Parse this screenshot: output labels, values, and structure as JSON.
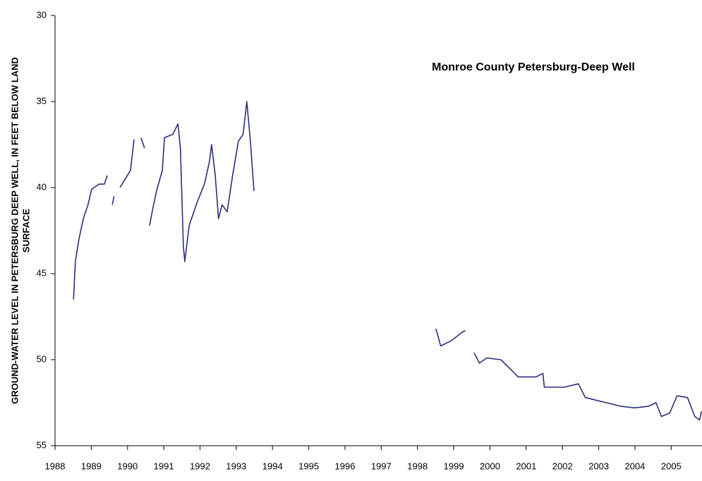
{
  "chart_data": {
    "type": "line",
    "title": "Monroe County Petersburg-Deep Well",
    "ylabel": [
      "GROUND-WATER LEVEL IN PETERSBURG DEEP WELL, IN FEET BELOW LAND",
      "SURFACE"
    ],
    "xlim": [
      1988,
      2005.85
    ],
    "xticks": [
      1988,
      1989,
      1990,
      1991,
      1992,
      1993,
      1994,
      1995,
      1996,
      1997,
      1998,
      1999,
      2000,
      2001,
      2002,
      2003,
      2004,
      2005
    ],
    "ylim": [
      55,
      30
    ],
    "yticks": [
      30,
      35,
      40,
      45,
      50,
      55
    ],
    "grid": false,
    "x": [
      1988.51,
      1988.56,
      1988.66,
      1988.78,
      1988.91,
      1989.01,
      1989.21,
      1989.36,
      1989.44,
      1989.55,
      1989.58,
      1989.63,
      1989.7,
      1989.79,
      1990.08,
      1990.18,
      1990.25,
      1990.37,
      1990.47,
      1990.55,
      1990.61,
      1990.68,
      1990.8,
      1990.96,
      1991.02,
      1991.25,
      1991.39,
      1991.46,
      1991.54,
      1991.58,
      1991.7,
      1991.93,
      1992.12,
      1992.26,
      1992.32,
      1992.42,
      1992.51,
      1992.61,
      1992.75,
      1992.9,
      1993.06,
      1993.19,
      1993.29,
      1993.39,
      1993.49,
      1996.0,
      1998.51,
      1998.64,
      1998.93,
      1999.23,
      1999.32,
      1999.36,
      1999.48,
      1999.52,
      1999.56,
      1999.71,
      1999.91,
      2000.3,
      2000.59,
      2000.78,
      2001.27,
      2001.46,
      2001.5,
      2002.05,
      2002.44,
      2002.63,
      2003.21,
      2003.6,
      2003.99,
      2004.38,
      2004.58,
      2004.73,
      2004.96,
      2005.16,
      2005.45,
      2005.65,
      2005.78,
      2005.84
    ],
    "series": [
      {
        "color": "#2b2f7f",
        "values": [
          46.5,
          44.3,
          43.0,
          41.8,
          41.0,
          40.1,
          39.8,
          39.8,
          39.3,
          null,
          41.0,
          40.5,
          null,
          40.0,
          39.0,
          37.2,
          null,
          37.1,
          37.7,
          null,
          42.2,
          41.4,
          40.2,
          39.0,
          37.1,
          36.9,
          36.3,
          37.7,
          43.4,
          44.3,
          42.2,
          40.8,
          39.8,
          38.5,
          37.5,
          39.3,
          41.8,
          41.0,
          41.4,
          39.3,
          37.3,
          36.9,
          35.0,
          37.3,
          40.2,
          null,
          48.2,
          49.2,
          48.9,
          48.4,
          48.3,
          null,
          48.8,
          null,
          49.6,
          50.2,
          49.9,
          50.0,
          50.6,
          51.0,
          51.0,
          50.8,
          51.6,
          51.6,
          51.4,
          52.2,
          52.5,
          52.7,
          52.8,
          52.7,
          52.5,
          53.3,
          53.1,
          52.1,
          52.2,
          53.3,
          53.5,
          53.0
        ]
      }
    ]
  }
}
